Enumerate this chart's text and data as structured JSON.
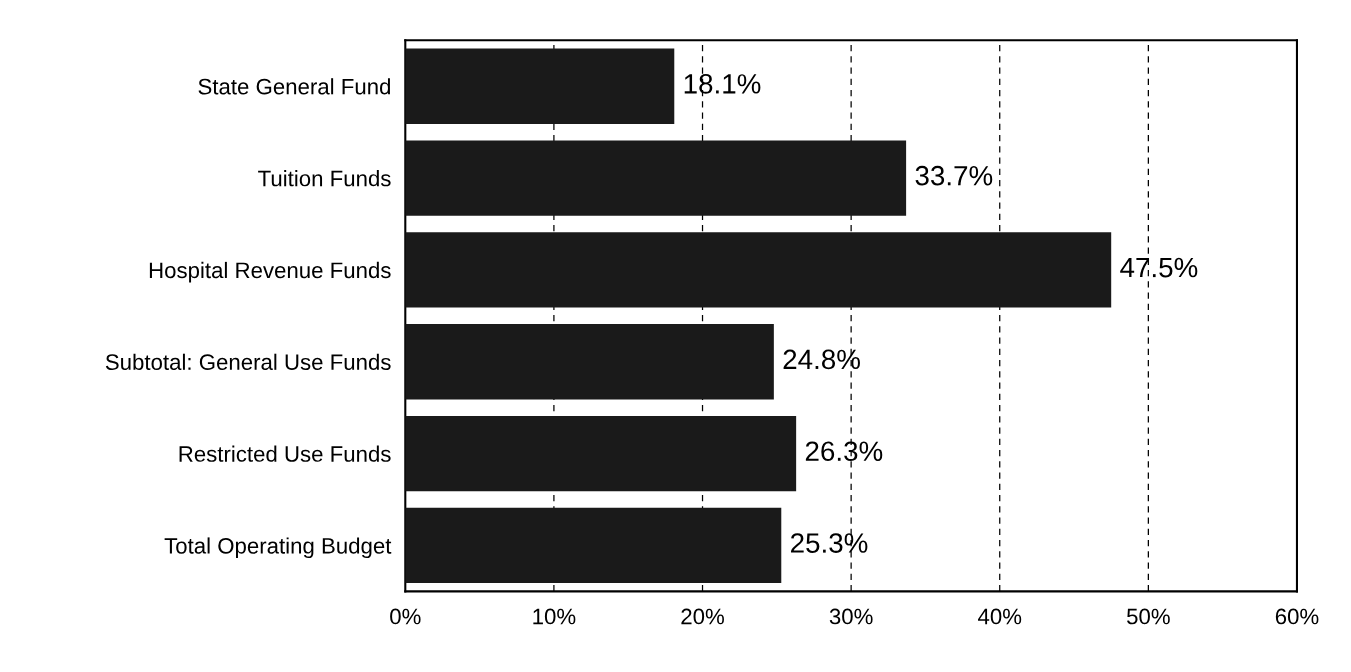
{
  "chart_data": {
    "type": "bar",
    "orientation": "horizontal",
    "categories": [
      "State General Fund",
      "Tuition Funds",
      "Hospital Revenue Funds",
      "Subtotal: General Use Funds",
      "Restricted Use Funds",
      "Total Operating Budget"
    ],
    "values": [
      18.1,
      33.7,
      47.5,
      24.8,
      26.3,
      25.3
    ],
    "value_labels": [
      "18.1%",
      "33.7%",
      "47.5%",
      "24.8%",
      "26.3%",
      "25.3%"
    ],
    "color": "#1a1a1a",
    "xlim": [
      0,
      60
    ],
    "xticks": [
      {
        "value": 0,
        "label": "0%"
      },
      {
        "value": 10,
        "label": "10%"
      },
      {
        "value": 20,
        "label": "20%"
      },
      {
        "value": 30,
        "label": "30%"
      },
      {
        "value": 40,
        "label": "40%"
      },
      {
        "value": 50,
        "label": "50%"
      },
      {
        "value": 60,
        "label": "60%"
      }
    ],
    "grid": "x"
  }
}
